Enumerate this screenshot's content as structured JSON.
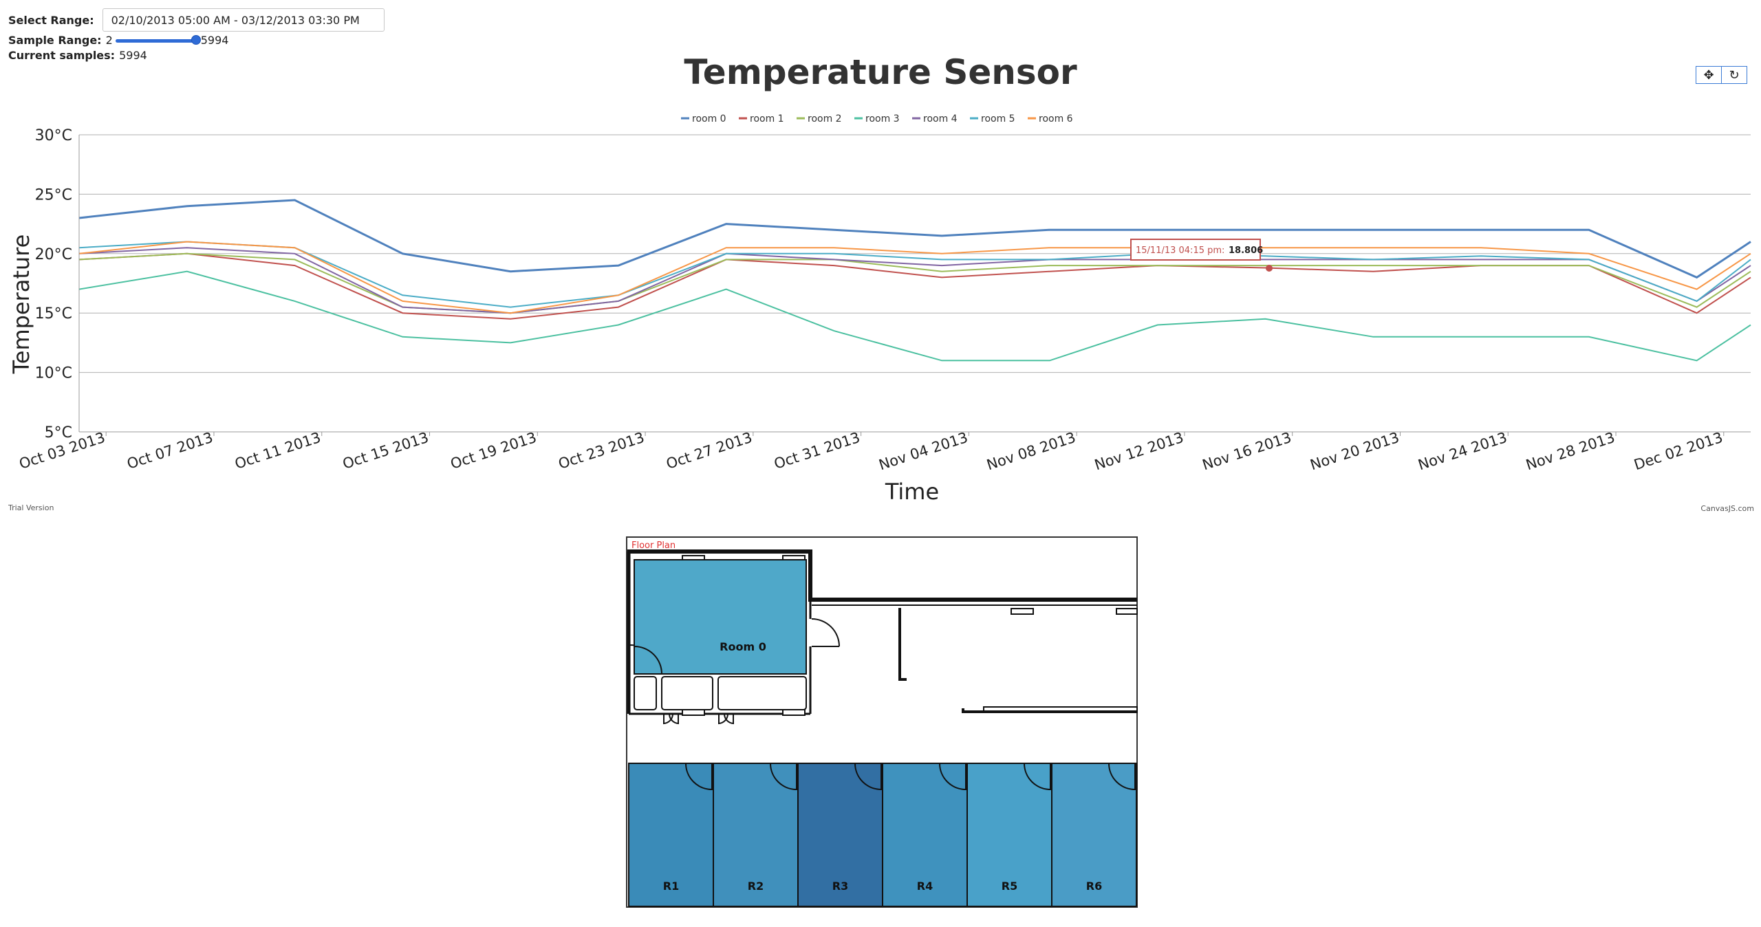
{
  "controls": {
    "select_range_label": "Select Range:",
    "select_range_value": "02/10/2013 05:00 AM - 03/12/2013 03:30 PM",
    "sample_range_label": "Sample Range:",
    "sample_min": "2",
    "sample_max": "5994",
    "current_samples_label": "Current samples:",
    "current_samples_value": "5994"
  },
  "toolbar": {
    "pan_icon": "pan-icon",
    "reset_icon": "reset-icon"
  },
  "footer": {
    "trial": "Trial Version",
    "credit": "CanvasJS.com"
  },
  "tooltip": {
    "time": "15/11/13 04:15 pm:",
    "value": "18.806"
  },
  "chart_data": {
    "type": "line",
    "title": "Temperature Sensor",
    "xlabel": "Time",
    "ylabel": "Temperature",
    "ylim": [
      5,
      30
    ],
    "y_ticks": [
      "5°C",
      "10°C",
      "15°C",
      "20°C",
      "25°C",
      "30°C"
    ],
    "x_ticks": [
      "Oct 03 2013",
      "Oct 07 2013",
      "Oct 11 2013",
      "Oct 15 2013",
      "Oct 19 2013",
      "Oct 23 2013",
      "Oct 27 2013",
      "Oct 31 2013",
      "Nov 04 2013",
      "Nov 08 2013",
      "Nov 12 2013",
      "Nov 16 2013",
      "Nov 20 2013",
      "Nov 24 2013",
      "Nov 28 2013",
      "Dec 02 2013"
    ],
    "x_range": [
      "2013-10-02",
      "2013-12-03"
    ],
    "grid": true,
    "legend_position": "top-center",
    "x": [
      "2013-10-02",
      "2013-10-06",
      "2013-10-10",
      "2013-10-14",
      "2013-10-18",
      "2013-10-22",
      "2013-10-26",
      "2013-10-30",
      "2013-11-03",
      "2013-11-07",
      "2013-11-11",
      "2013-11-15",
      "2013-11-19",
      "2013-11-23",
      "2013-11-27",
      "2013-12-01",
      "2013-12-03"
    ],
    "series": [
      {
        "name": "room 0",
        "color": "#4f81bd",
        "values": [
          23,
          24,
          24.5,
          20,
          18.5,
          19,
          22.5,
          22,
          21.5,
          22,
          22,
          22,
          22,
          22,
          22,
          18,
          21
        ]
      },
      {
        "name": "room 1",
        "color": "#c0504d",
        "values": [
          19.5,
          20,
          19,
          15,
          14.5,
          15.5,
          19.5,
          19,
          18,
          18.5,
          19,
          18.8,
          18.5,
          19,
          19,
          15,
          18
        ]
      },
      {
        "name": "room 2",
        "color": "#9bbb59",
        "values": [
          19.5,
          20,
          19.5,
          15.5,
          15,
          16,
          19.5,
          19.5,
          18.5,
          19,
          19,
          19,
          19,
          19,
          19,
          15.5,
          18.5
        ]
      },
      {
        "name": "room 3",
        "color": "#4bc0a0",
        "values": [
          17,
          18.5,
          16,
          13,
          12.5,
          14,
          17,
          13.5,
          11,
          11,
          14,
          14.5,
          13,
          13,
          13,
          11,
          14
        ]
      },
      {
        "name": "room 4",
        "color": "#8064a2",
        "values": [
          20,
          20.5,
          20,
          15.5,
          15,
          16,
          20,
          19.5,
          19,
          19.5,
          19.5,
          19.5,
          19.5,
          19.5,
          19.5,
          16,
          19
        ]
      },
      {
        "name": "room 5",
        "color": "#4aacc6",
        "values": [
          20.5,
          21,
          20.5,
          16.5,
          15.5,
          16.5,
          20,
          20,
          19.5,
          19.5,
          20,
          19.8,
          19.5,
          19.8,
          19.5,
          16,
          19.5
        ]
      },
      {
        "name": "room 6",
        "color": "#f79646",
        "values": [
          20,
          21,
          20.5,
          16,
          15,
          16.5,
          20.5,
          20.5,
          20,
          20.5,
          20.5,
          20.5,
          20.5,
          20.5,
          20,
          17,
          20
        ]
      }
    ]
  },
  "floor_plan": {
    "title": "Floor Plan",
    "room0_label": "Room 0",
    "rooms": [
      {
        "label": "R1",
        "color": "#3a8bb8"
      },
      {
        "label": "R2",
        "color": "#4090bc"
      },
      {
        "label": "R3",
        "color": "#326fa3"
      },
      {
        "label": "R4",
        "color": "#3f92be"
      },
      {
        "label": "R5",
        "color": "#49a1c9"
      },
      {
        "label": "R6",
        "color": "#4a9cc6"
      }
    ],
    "room0_color": "#4fa8c9"
  }
}
